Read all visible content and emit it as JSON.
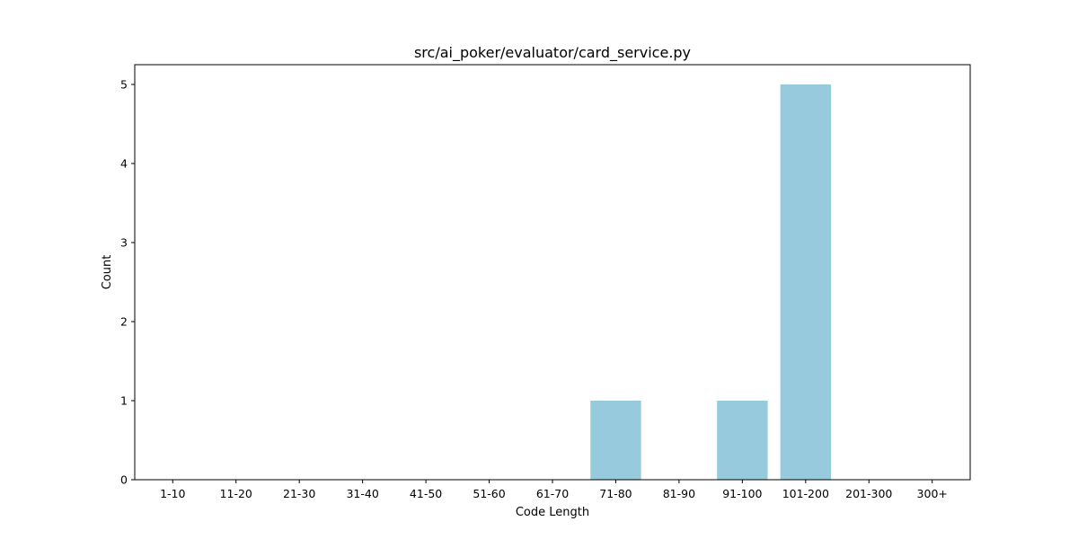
{
  "chart_data": {
    "type": "bar",
    "title": "src/ai_poker/evaluator/card_service.py",
    "xlabel": "Code Length",
    "ylabel": "Count",
    "categories": [
      "1-10",
      "11-20",
      "21-30",
      "31-40",
      "41-50",
      "51-60",
      "61-70",
      "71-80",
      "81-90",
      "91-100",
      "101-200",
      "201-300",
      "300+"
    ],
    "values": [
      0,
      0,
      0,
      0,
      0,
      0,
      0,
      1,
      0,
      1,
      5,
      0,
      0
    ],
    "ylim": [
      0,
      5.25
    ],
    "yticks": [
      0,
      1,
      2,
      3,
      4,
      5
    ],
    "bar_color": "#96cadc",
    "grid": false,
    "legend": "none"
  }
}
